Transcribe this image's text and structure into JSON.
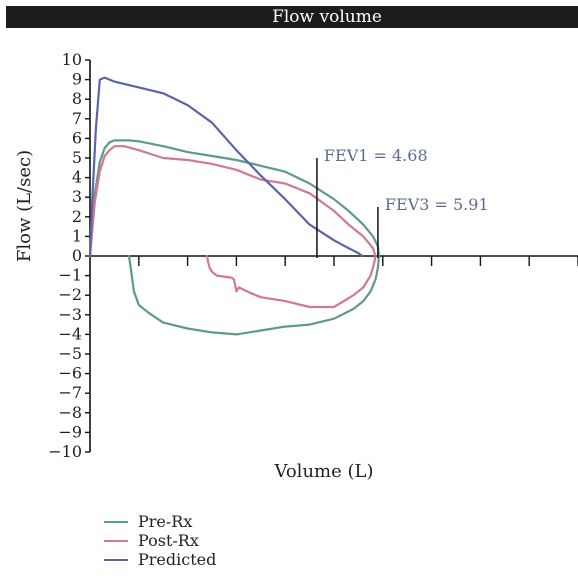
{
  "chart_data": {
    "type": "line",
    "title": "Flow volume",
    "xlabel": "Volume (L)",
    "ylabel": "Flow (L/sec)",
    "ylim": [
      -10,
      10
    ],
    "y_ticks": [
      10,
      9,
      8,
      7,
      6,
      5,
      4,
      3,
      2,
      1,
      0,
      -1,
      -2,
      -3,
      -4,
      -5,
      -6,
      -7,
      -8,
      -9,
      -10
    ],
    "xlim": [
      0,
      10
    ],
    "x_ticks": [
      1,
      2,
      3,
      4,
      5,
      6,
      7,
      8,
      9,
      10
    ],
    "x_tick_labels_shown": false,
    "grid": false,
    "legend_position": "bottom-left",
    "colors": {
      "Pre-Rx": "#5f9a86",
      "Post-Rx": "#d07a8a",
      "Predicted": "#5b64a8",
      "annotation": "#5d6b8e"
    },
    "series": [
      {
        "name": "Pre-Rx",
        "x": [
          0,
          0.1,
          0.2,
          0.3,
          0.4,
          0.5,
          0.6,
          0.8,
          1.0,
          1.5,
          2.0,
          2.5,
          3.0,
          3.5,
          4.0,
          4.5,
          5.0,
          5.3,
          5.6,
          5.8,
          5.9,
          5.92,
          5.9,
          5.85,
          5.75,
          5.6,
          5.4,
          5.0,
          4.5,
          4.0,
          3.5,
          3.0,
          2.5,
          2.0,
          1.5,
          1.2,
          1.0,
          0.9,
          0.85,
          0.8
        ],
        "y": [
          0,
          3.2,
          4.8,
          5.5,
          5.8,
          5.9,
          5.9,
          5.9,
          5.85,
          5.6,
          5.3,
          5.1,
          4.9,
          4.6,
          4.3,
          3.7,
          2.9,
          2.3,
          1.6,
          1.0,
          0.5,
          0,
          -0.6,
          -1.2,
          -1.8,
          -2.3,
          -2.7,
          -3.2,
          -3.5,
          -3.6,
          -3.8,
          -4.0,
          -3.9,
          -3.7,
          -3.4,
          -2.9,
          -2.5,
          -1.8,
          -0.9,
          0
        ]
      },
      {
        "name": "Post-Rx",
        "x": [
          0,
          0.1,
          0.2,
          0.3,
          0.4,
          0.5,
          0.7,
          1.0,
          1.5,
          2.0,
          2.5,
          3.0,
          3.5,
          4.0,
          4.5,
          5.0,
          5.3,
          5.6,
          5.8,
          5.85,
          5.82,
          5.75,
          5.6,
          5.4,
          5.2,
          5.0,
          4.5,
          4.0,
          3.5,
          3.3,
          3.05,
          3.0,
          2.95,
          2.9,
          2.6,
          2.5,
          2.45,
          2.42,
          2.4
        ],
        "y": [
          0,
          2.8,
          4.3,
          5.1,
          5.4,
          5.6,
          5.6,
          5.4,
          5.0,
          4.9,
          4.7,
          4.4,
          3.9,
          3.7,
          3.2,
          2.3,
          1.6,
          1.0,
          0.4,
          0,
          -0.4,
          -1.0,
          -1.6,
          -2.0,
          -2.3,
          -2.6,
          -2.6,
          -2.3,
          -2.1,
          -1.9,
          -1.6,
          -1.8,
          -1.2,
          -1.1,
          -1.0,
          -0.8,
          -0.6,
          -0.3,
          0
        ]
      },
      {
        "name": "Predicted",
        "x": [
          0,
          0.05,
          0.12,
          0.2,
          0.3,
          0.5,
          1.0,
          1.5,
          2.0,
          2.5,
          3.0,
          3.5,
          4.0,
          4.5,
          5.0,
          5.3,
          5.5,
          5.58
        ],
        "y": [
          0,
          3.0,
          6.5,
          9.0,
          9.1,
          8.9,
          8.6,
          8.3,
          7.7,
          6.8,
          5.4,
          4.1,
          2.9,
          1.6,
          0.8,
          0.4,
          0.15,
          0
        ]
      }
    ],
    "annotations": [
      {
        "text": "FEV1 = 4.68",
        "x": 4.65,
        "y_top": 5.0
      },
      {
        "text": "FEV3 = 5.91",
        "x": 5.9,
        "y_top": 2.5
      }
    ]
  }
}
